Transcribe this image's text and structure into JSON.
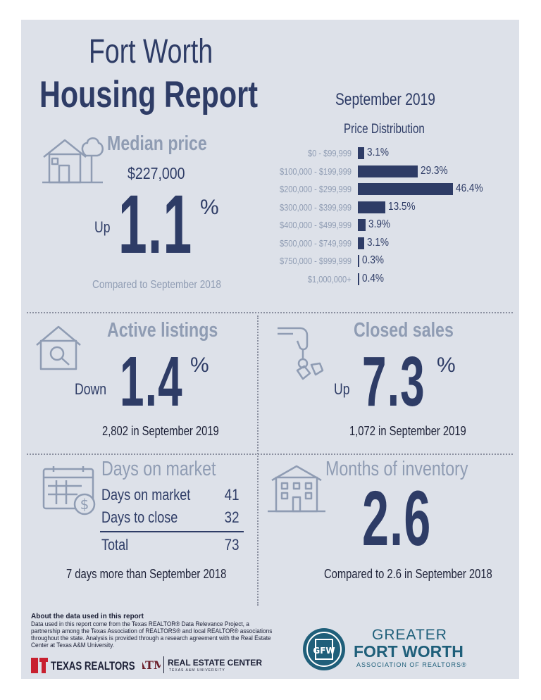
{
  "header": {
    "title_line1": "Fort Worth",
    "title_line2": "Housing Report",
    "date": "September 2019"
  },
  "median_price": {
    "heading": "Median price",
    "value": "$227,000",
    "direction": "Up",
    "change": "1.1",
    "percent_sign": "%",
    "comparison": "Compared to September 2018"
  },
  "chart_data": {
    "type": "bar",
    "title": "Price Distribution",
    "categories": [
      "$0 - $99,999",
      "$100,000 - $199,999",
      "$200,000 - $299,999",
      "$300,000 - $399,999",
      "$400,000 - $499,999",
      "$500,000 - $749,999",
      "$750,000 - $999,999",
      "$1,000,000+"
    ],
    "values": [
      3.1,
      29.3,
      46.4,
      13.5,
      3.9,
      3.1,
      0.3,
      0.4
    ],
    "value_labels": [
      "3.1%",
      "29.3%",
      "46.4%",
      "13.5%",
      "3.9%",
      "3.1%",
      "0.3%",
      "0.4%"
    ],
    "orientation": "horizontal",
    "xlim": [
      0,
      50
    ]
  },
  "active_listings": {
    "heading": "Active listings",
    "direction": "Down",
    "change": "1.4",
    "percent_sign": "%",
    "note": "2,802 in September 2019"
  },
  "closed_sales": {
    "heading": "Closed sales",
    "direction": "Up",
    "change": "7.3",
    "percent_sign": "%",
    "note": "1,072 in September 2019"
  },
  "days_on_market": {
    "heading": "Days on market",
    "rows": [
      {
        "label": "Days on market",
        "value": "41"
      },
      {
        "label": "Days to close",
        "value": "32"
      }
    ],
    "total_label": "Total",
    "total_value": "73",
    "note": "7 days more than September 2018"
  },
  "months_inventory": {
    "heading": "Months of inventory",
    "value": "2.6",
    "note": "Compared to 2.6 in September 2018"
  },
  "about": {
    "title": "About the data used in this report",
    "text": "Data used in this report come from the Texas REALTOR® Data Relevance Project, a partnership among the Texas Association of REALTORS® and local REALTOR® associations throughout the state. Analysis is provided through a research agreement with the Real Estate Center at Texas A&M University."
  },
  "logos": {
    "texas_realtors": "TEXAS REALTORS",
    "real_estate_center": "REAL ESTATE CENTER",
    "real_estate_center_sub": "TEXAS A&M UNIVERSITY",
    "gfw_line1": "GREATER",
    "gfw_line2": "FORT WORTH",
    "gfw_line3": "ASSOCIATION OF REALTORS®"
  },
  "colors": {
    "navy": "#2e3c66",
    "steel": "#8f9cb3",
    "panel": "#dde1e9",
    "red": "#c8202f"
  }
}
